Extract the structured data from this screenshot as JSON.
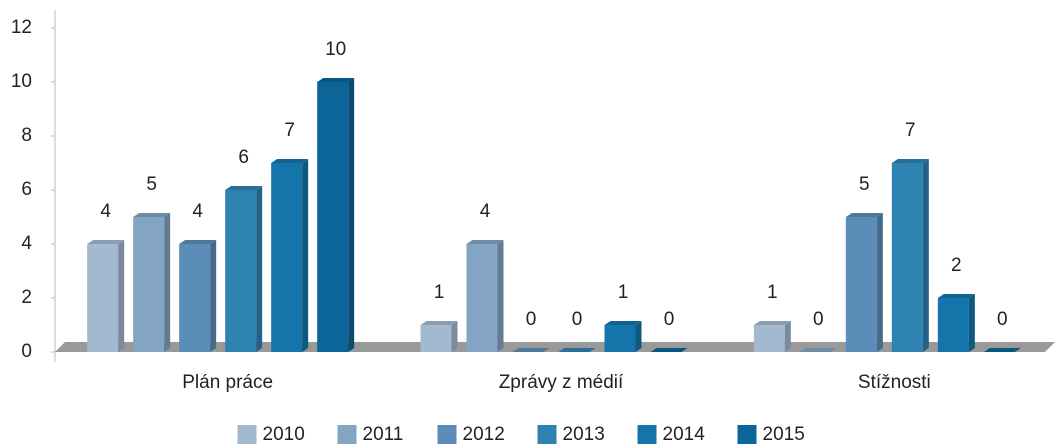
{
  "chart_data": {
    "type": "bar3d",
    "categories": [
      "Plán práce",
      "Zprávy z médií",
      "Stížnosti"
    ],
    "series": [
      {
        "name": "2010",
        "color": "#a3b9cf",
        "values": [
          4,
          1,
          1
        ]
      },
      {
        "name": "2011",
        "color": "#84a4c4",
        "values": [
          5,
          4,
          0
        ]
      },
      {
        "name": "2012",
        "color": "#5c8db8",
        "values": [
          4,
          0,
          5
        ]
      },
      {
        "name": "2013",
        "color": "#2f83b2",
        "values": [
          6,
          0,
          7
        ]
      },
      {
        "name": "2014",
        "color": "#1475aa",
        "values": [
          7,
          1,
          2
        ]
      },
      {
        "name": "2015",
        "color": "#0b6598",
        "values": [
          10,
          0,
          0
        ]
      }
    ],
    "ylim": [
      0,
      12
    ],
    "yticks": [
      0,
      2,
      4,
      6,
      8,
      10,
      12
    ],
    "legend": "bottom"
  }
}
